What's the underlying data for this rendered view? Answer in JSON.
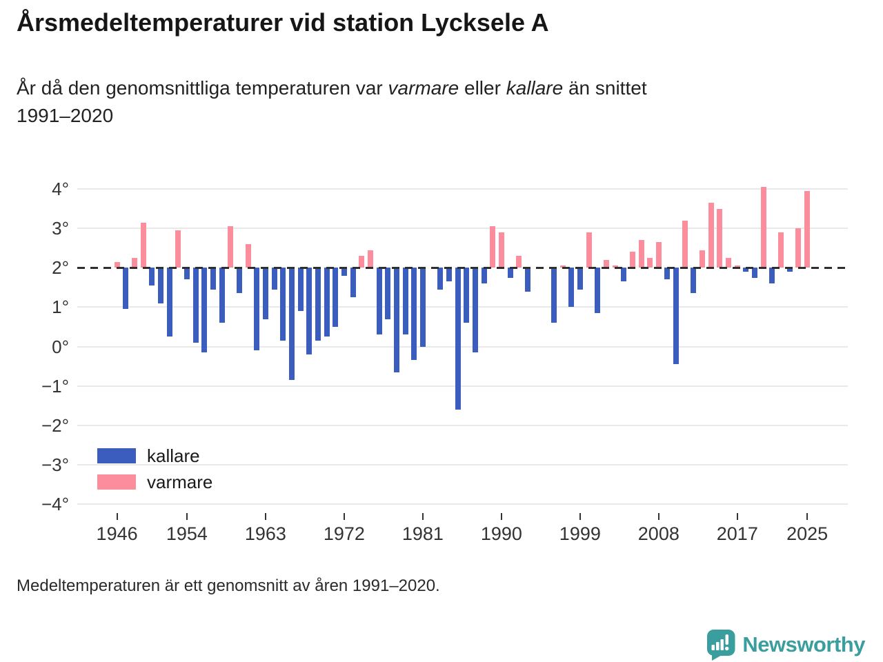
{
  "header": {
    "title": "Årsmedeltemperaturer vid station Lycksele A",
    "subtitle": {
      "part1": "År då den genomsnittliga temperaturen var ",
      "italic1": "varmare",
      "part2": " eller ",
      "italic2": "kallare",
      "part3": " än snittet",
      "line2": "1991–2020"
    }
  },
  "chart_data": {
    "type": "bar",
    "title": "Årsmedeltemperaturer vid station Lycksele A",
    "ylabel": "",
    "xlabel": "",
    "unit": "°C",
    "baseline": 2.0,
    "baseline_note": "dashed reference line at 2° = average 1991–2020",
    "ylim": [
      -4,
      4
    ],
    "grid": true,
    "legend_position": "bottom-left-inside",
    "yticks": [
      {
        "v": 4,
        "label": "4°"
      },
      {
        "v": 3,
        "label": "3°"
      },
      {
        "v": 2,
        "label": "2°"
      },
      {
        "v": 1,
        "label": "1°"
      },
      {
        "v": 0,
        "label": "0°"
      },
      {
        "v": -1,
        "label": "−1°"
      },
      {
        "v": -2,
        "label": "−2°"
      },
      {
        "v": -3,
        "label": "−3°"
      },
      {
        "v": -4,
        "label": "−4°"
      }
    ],
    "xticks": [
      1946,
      1954,
      1963,
      1972,
      1981,
      1990,
      1999,
      2008,
      2017,
      2025
    ],
    "colors": {
      "kallare": "#3B5EBE",
      "varmare": "#FB8D9D"
    },
    "legend": [
      {
        "label": "kallare",
        "color_key": "kallare"
      },
      {
        "label": "varmare",
        "color_key": "varmare"
      }
    ],
    "years": [
      1946,
      1947,
      1948,
      1949,
      1950,
      1951,
      1952,
      1953,
      1954,
      1955,
      1956,
      1957,
      1958,
      1959,
      1960,
      1961,
      1962,
      1963,
      1964,
      1965,
      1966,
      1967,
      1968,
      1969,
      1970,
      1971,
      1972,
      1973,
      1974,
      1975,
      1976,
      1977,
      1978,
      1979,
      1980,
      1981,
      1982,
      1983,
      1984,
      1985,
      1986,
      1987,
      1988,
      1989,
      1990,
      1991,
      1992,
      1993,
      1994,
      1995,
      1996,
      1997,
      1998,
      1999,
      2000,
      2001,
      2002,
      2003,
      2004,
      2005,
      2006,
      2007,
      2008,
      2009,
      2010,
      2011,
      2012,
      2013,
      2014,
      2015,
      2016,
      2017,
      2018,
      2019,
      2020,
      2021,
      2022,
      2023,
      2024,
      2025
    ],
    "values": [
      2.15,
      0.95,
      2.25,
      3.15,
      1.55,
      1.1,
      0.25,
      2.95,
      1.7,
      0.1,
      -0.15,
      1.45,
      0.6,
      3.05,
      1.35,
      2.6,
      -0.1,
      0.7,
      1.45,
      0.15,
      -0.85,
      0.9,
      -0.2,
      0.15,
      0.25,
      0.5,
      1.8,
      1.25,
      2.3,
      2.45,
      0.3,
      0.7,
      -0.65,
      0.3,
      -0.35,
      0.0,
      2.0,
      1.45,
      1.65,
      -1.6,
      0.6,
      -0.15,
      1.6,
      3.05,
      2.9,
      1.75,
      2.3,
      1.4,
      2.0,
      2.0,
      0.6,
      2.05,
      1.0,
      1.45,
      2.9,
      0.85,
      2.2,
      2.05,
      1.65,
      2.4,
      2.7,
      2.25,
      2.65,
      1.7,
      -0.45,
      3.2,
      1.35,
      2.45,
      3.65,
      3.5,
      2.25,
      2.05,
      1.9,
      1.75,
      4.05,
      1.6,
      2.9,
      1.9,
      3.0,
      3.95
    ]
  },
  "footer": {
    "note": "Medeltemperaturen är ett genomsnitt av åren 1991–2020."
  },
  "branding": {
    "name": "Newsworthy",
    "color": "#3A9E9E"
  }
}
